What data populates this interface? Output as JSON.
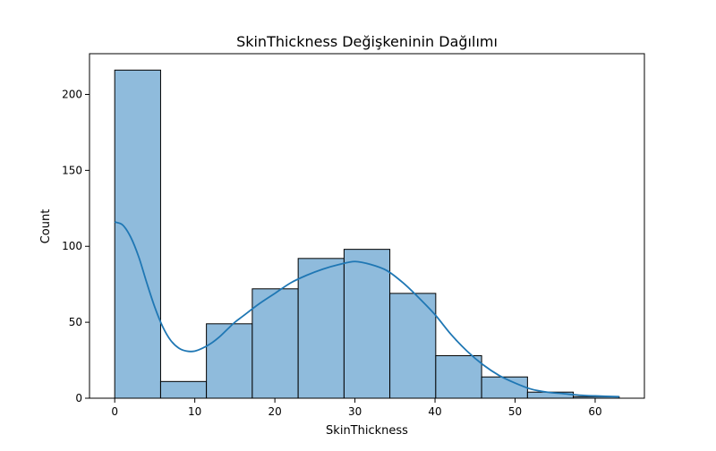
{
  "chart_data": {
    "type": "bar",
    "title": "SkinThickness Değişkeninin Dağılımı",
    "xlabel": "SkinThickness",
    "ylabel": "Count",
    "xlim": [
      -3.15,
      66.15
    ],
    "ylim": [
      0,
      226.8
    ],
    "xticks": [
      0,
      10,
      20,
      30,
      40,
      50,
      60
    ],
    "yticks": [
      0,
      50,
      100,
      150,
      200
    ],
    "bins": [
      {
        "x0": 0.0,
        "x1": 5.73,
        "count": 216
      },
      {
        "x0": 5.73,
        "x1": 11.45,
        "count": 11
      },
      {
        "x0": 11.45,
        "x1": 17.18,
        "count": 49
      },
      {
        "x0": 17.18,
        "x1": 22.91,
        "count": 72
      },
      {
        "x0": 22.91,
        "x1": 28.64,
        "count": 92
      },
      {
        "x0": 28.64,
        "x1": 34.36,
        "count": 98
      },
      {
        "x0": 34.36,
        "x1": 40.09,
        "count": 69
      },
      {
        "x0": 40.09,
        "x1": 45.82,
        "count": 28
      },
      {
        "x0": 45.82,
        "x1": 51.55,
        "count": 14
      },
      {
        "x0": 51.55,
        "x1": 57.27,
        "count": 4
      },
      {
        "x0": 57.27,
        "x1": 63.0,
        "count": 1
      }
    ],
    "kde": {
      "x": [
        0,
        1,
        2,
        3,
        4,
        5,
        6,
        7,
        8,
        9,
        10,
        11,
        12,
        13,
        14,
        15,
        16,
        18,
        20,
        22,
        24,
        26,
        28,
        30,
        32,
        34,
        36,
        38,
        40,
        42,
        44,
        46,
        48,
        50,
        52,
        54,
        56,
        58,
        60,
        63
      ],
      "y": [
        116,
        114,
        106,
        93,
        76,
        60,
        47,
        38,
        33,
        31,
        31,
        33,
        36,
        40,
        45,
        50,
        54,
        62,
        69,
        76,
        81,
        85,
        88,
        90,
        88,
        84,
        76,
        66,
        55,
        42,
        31,
        22,
        15,
        10,
        6,
        4,
        3,
        2,
        1.5,
        1
      ],
      "color": "#1f77b4"
    },
    "bar_fill": "#8fbbdc",
    "bar_edge": "#000000",
    "grid": false,
    "legend": "none"
  }
}
